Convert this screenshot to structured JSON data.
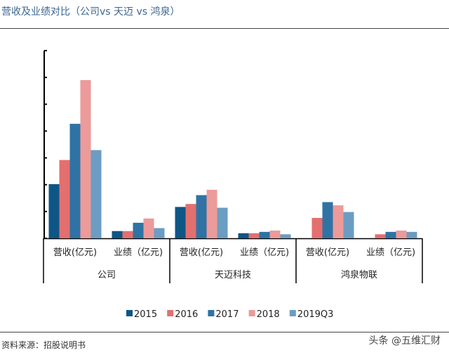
{
  "title": "营收及业绩对比（公司vs 天迈 vs 鸿泉）",
  "source": "资料来源：招股说明书",
  "watermark": "头条 @五维汇财",
  "chart_data": {
    "type": "bar",
    "title": "营收及业绩对比（公司vs 天迈 vs 鸿泉）",
    "groups": [
      "公司",
      "天迈科技",
      "鸿泉物联"
    ],
    "subcategories": [
      "营收(亿元)",
      "业绩（亿元)"
    ],
    "y_ticks_labeled": false,
    "ylim": [
      0,
      7
    ],
    "grid": false,
    "legend_position": "bottom",
    "series": [
      {
        "name": "2015",
        "color": "#0e5686",
        "values": [
          [
            2.02,
            0.27
          ],
          [
            1.17,
            0.19
          ],
          [
            0,
            0
          ]
        ]
      },
      {
        "name": "2016",
        "color": "#e46f6f",
        "values": [
          [
            2.92,
            0.27
          ],
          [
            1.28,
            0.19
          ],
          [
            0.76,
            0.15
          ]
        ]
      },
      {
        "name": "2017",
        "color": "#2f73a4",
        "values": [
          [
            4.27,
            0.58
          ],
          [
            1.61,
            0.24
          ],
          [
            1.35,
            0.24
          ]
        ]
      },
      {
        "name": "2018",
        "color": "#ec9a9a",
        "values": [
          [
            5.9,
            0.74
          ],
          [
            1.81,
            0.29
          ],
          [
            1.23,
            0.29
          ]
        ]
      },
      {
        "name": "2019Q3",
        "color": "#6b9dc2",
        "values": [
          [
            3.29,
            0.38
          ],
          [
            1.14,
            0.15
          ],
          [
            0.98,
            0.24
          ]
        ]
      }
    ]
  }
}
